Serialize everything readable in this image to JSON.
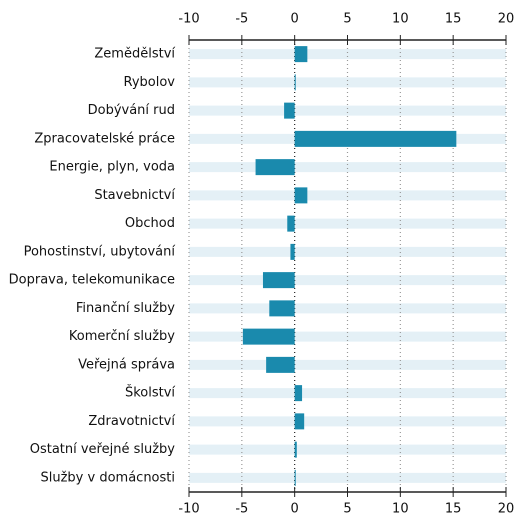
{
  "chart_data": {
    "type": "bar",
    "orientation": "horizontal",
    "categories": [
      "Zemědělství",
      "Rybolov",
      "Dobývání rud",
      "Zpracovatelské práce",
      "Energie, plyn, voda",
      "Stavebnictví",
      "Obchod",
      "Pohostinství, ubytování",
      "Doprava, telekomunikace",
      "Finanční služby",
      "Komerční služby",
      "Veřejná správa",
      "Školství",
      "Zdravotnictví",
      "Ostatní veřejné služby",
      "Služby v domácnosti"
    ],
    "values": [
      1.2,
      0.1,
      -1.0,
      15.3,
      -3.7,
      1.2,
      -0.7,
      -0.4,
      -3.0,
      -2.4,
      -4.9,
      -2.7,
      0.7,
      0.9,
      0.2,
      0.1
    ],
    "color": "#1a8aad",
    "xlim": [
      -10,
      20
    ],
    "xticks": [
      -10,
      -5,
      0,
      5,
      10,
      15,
      20
    ],
    "grid": true
  }
}
